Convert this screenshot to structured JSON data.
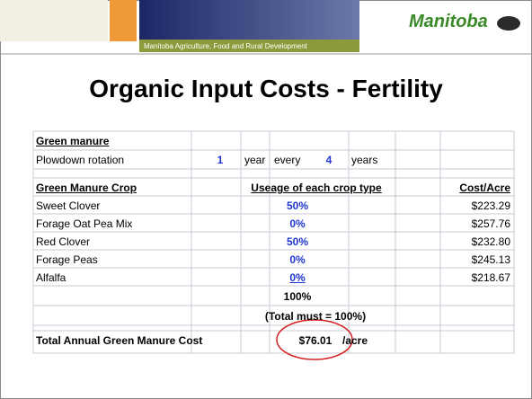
{
  "header": {
    "brand": "Manitoba",
    "subtitle": "Manitoba Agriculture, Food and Rural Development"
  },
  "title": "Organic Input Costs - Fertility",
  "table": {
    "section": "Green manure",
    "rotation": {
      "label": "Plowdown rotation",
      "years_on": "1",
      "word1": "year",
      "word2": "every",
      "years_cycle": "4",
      "word3": "years"
    },
    "columns": [
      "Green Manure Crop",
      "Useage of each crop type",
      "Cost/Acre"
    ],
    "rows": [
      [
        "Sweet Clover",
        "50%",
        "$223.29"
      ],
      [
        "Forage Oat Pea Mix",
        "0%",
        "$257.76"
      ],
      [
        "Red Clover",
        "50%",
        "$232.80"
      ],
      [
        "Forage Peas",
        "0%",
        "$245.13"
      ],
      [
        "Alfalfa",
        "0%",
        "$218.67"
      ]
    ],
    "total_usage": "100%",
    "note": "(Total must = 100%)",
    "total": {
      "label": "Total Annual Green Manure Cost",
      "value": "$76.01",
      "unit": "/acre"
    }
  }
}
